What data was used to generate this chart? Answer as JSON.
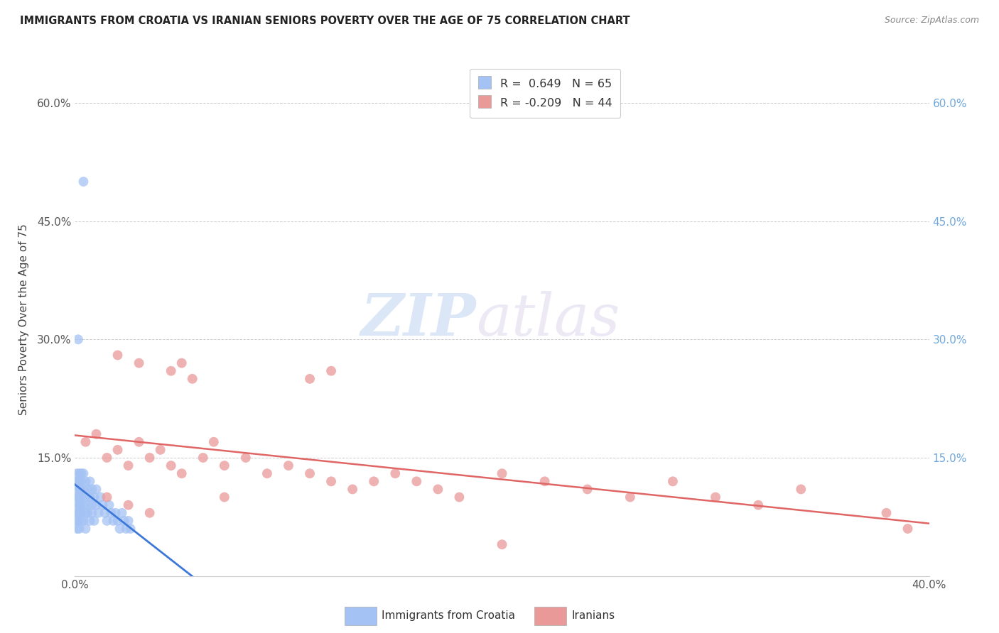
{
  "title": "IMMIGRANTS FROM CROATIA VS IRANIAN SENIORS POVERTY OVER THE AGE OF 75 CORRELATION CHART",
  "source": "Source: ZipAtlas.com",
  "ylabel": "Seniors Poverty Over the Age of 75",
  "xlim": [
    0.0,
    0.4
  ],
  "ylim": [
    0.0,
    0.65
  ],
  "yticks": [
    0.0,
    0.15,
    0.3,
    0.45,
    0.6
  ],
  "ytick_labels_left": [
    "",
    "15.0%",
    "30.0%",
    "45.0%",
    "60.0%"
  ],
  "ytick_labels_right": [
    "",
    "15.0%",
    "30.0%",
    "45.0%",
    "60.0%"
  ],
  "xticks": [
    0.0,
    0.1,
    0.2,
    0.3,
    0.4
  ],
  "xtick_labels": [
    "0.0%",
    "",
    "",
    "",
    "40.0%"
  ],
  "r_blue": 0.649,
  "n_blue": 65,
  "r_pink": -0.209,
  "n_pink": 44,
  "blue_scatter_color": "#a4c2f4",
  "pink_scatter_color": "#ea9999",
  "blue_line_color": "#3c78d8",
  "pink_line_color": "#e06666",
  "legend_label1": "Immigrants from Croatia",
  "legend_label2": "Iranians",
  "background_color": "#ffffff",
  "grid_color": "#cccccc",
  "title_color": "#222222",
  "source_color": "#888888",
  "right_tick_color": "#6fa8dc",
  "left_tick_color": "#555555"
}
